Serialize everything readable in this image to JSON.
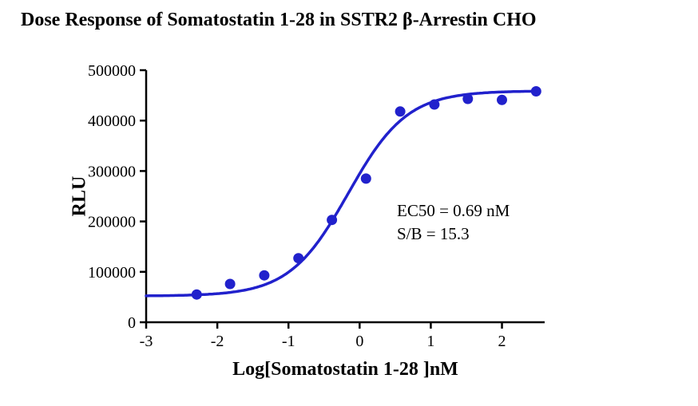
{
  "annotation": {
    "line1": "EC50 = 0.69 nM",
    "line2": "S/B = 15.3"
  },
  "chart_data": {
    "type": "scatter",
    "title": "Dose Response of Somatostatin 1-28 in SSTR2 β-Arrestin CHO",
    "xlabel": "Log[Somatostatin 1-28 ]nM",
    "ylabel": "RLU",
    "xlim": [
      -3,
      2.6
    ],
    "ylim": [
      0,
      500000
    ],
    "xticks": [
      -3,
      -2,
      -1,
      0,
      1,
      2
    ],
    "yticks": [
      0,
      100000,
      200000,
      300000,
      400000,
      500000
    ],
    "grid": false,
    "legend": "none",
    "color": "#2121cc",
    "points": {
      "x": [
        -2.29,
        -1.82,
        -1.34,
        -0.86,
        -0.39,
        0.09,
        0.57,
        1.05,
        1.52,
        2.0,
        2.48
      ],
      "y": [
        55000,
        76000,
        93000,
        127000,
        203000,
        285000,
        418000,
        432000,
        443000,
        441000,
        458000
      ]
    },
    "fit": {
      "model": "4PL-sigmoid",
      "bottom": 52000,
      "top": 459000,
      "logEC50": -0.161,
      "hillslope": 1.05,
      "x_range": [
        -3,
        2.48
      ]
    },
    "ec50_nM": 0.69,
    "signal_to_background": 15.3
  }
}
